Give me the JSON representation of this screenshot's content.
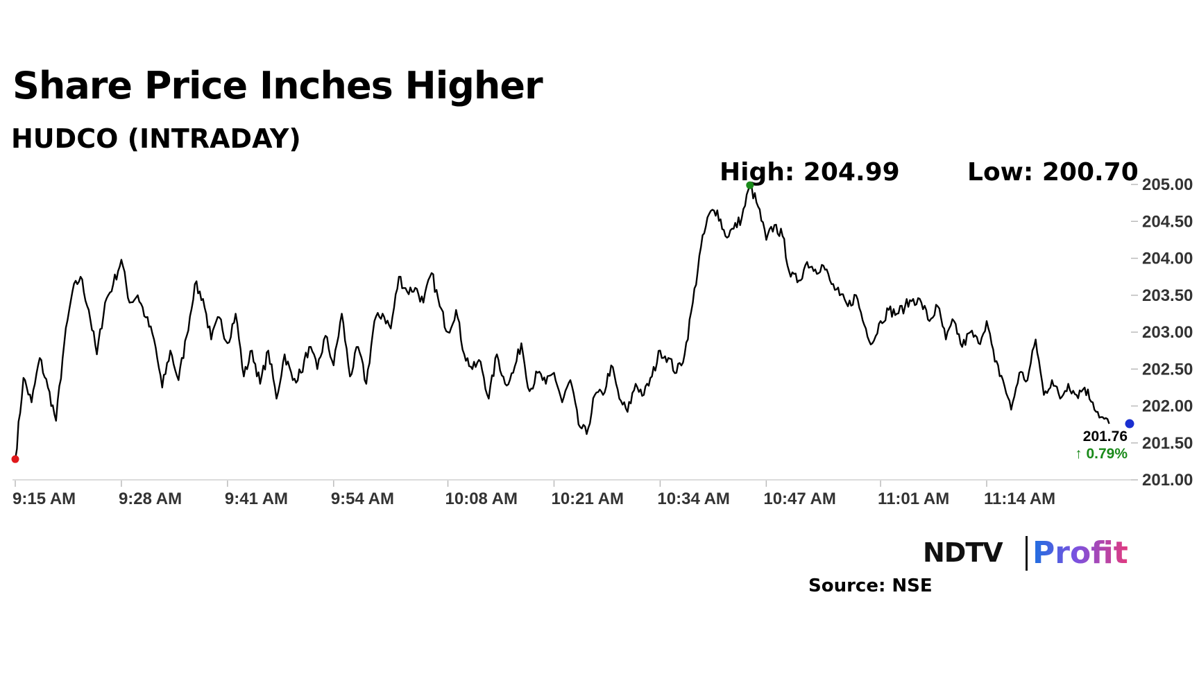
{
  "header": {
    "title": "Share Price Inches Higher",
    "subtitle": "HUDCO (INTRADAY)"
  },
  "stats": {
    "high_label": "High: 204.99",
    "low_label": "Low: 200.70"
  },
  "last": {
    "price": "201.76",
    "change": "↑ 0.79%"
  },
  "brand": {
    "ndtv": "NDTV",
    "profit": "Profit"
  },
  "footer": {
    "source": "Source: NSE"
  },
  "colors": {
    "line": "#000000",
    "open_marker": "#e0181b",
    "high_marker": "#1a8a1a",
    "last_marker": "#1a2fd0",
    "up": "#1a8a1a",
    "axis": "#333333"
  },
  "chart_data": {
    "type": "line",
    "x_ticks": [
      "9:15 AM",
      "9:28 AM",
      "9:41 AM",
      "9:54 AM",
      "10:08 AM",
      "10:21 AM",
      "10:34 AM",
      "10:47 AM",
      "11:01 AM",
      "11:14 AM"
    ],
    "y_ticks": [
      "201.00",
      "201.50",
      "202.00",
      "202.50",
      "203.00",
      "203.50",
      "204.00",
      "204.50",
      "205.00"
    ],
    "ylim": [
      201.0,
      205.0
    ],
    "grid": false,
    "series": [
      {
        "points": [
          [
            "9:15",
            201.28
          ],
          [
            "9:16",
            202.38
          ],
          [
            "9:17",
            202.05
          ],
          [
            "9:18",
            202.65
          ],
          [
            "9:19",
            202.25
          ],
          [
            "9:20",
            201.8
          ],
          [
            "9:21",
            202.85
          ],
          [
            "9:22",
            203.55
          ],
          [
            "9:23",
            203.75
          ],
          [
            "9:24",
            203.3
          ],
          [
            "9:25",
            202.7
          ],
          [
            "9:26",
            203.4
          ],
          [
            "9:27",
            203.65
          ],
          [
            "9:28",
            203.98
          ],
          [
            "9:29",
            203.4
          ],
          [
            "9:30",
            203.5
          ],
          [
            "9:31",
            203.2
          ],
          [
            "9:32",
            202.9
          ],
          [
            "9:33",
            202.25
          ],
          [
            "9:34",
            202.75
          ],
          [
            "9:35",
            202.35
          ],
          [
            "9:36",
            202.95
          ],
          [
            "9:37",
            203.65
          ],
          [
            "9:38",
            203.45
          ],
          [
            "9:39",
            202.9
          ],
          [
            "9:40",
            203.2
          ],
          [
            "9:41",
            202.85
          ],
          [
            "9:42",
            203.25
          ],
          [
            "9:43",
            202.4
          ],
          [
            "9:44",
            202.75
          ],
          [
            "9:45",
            202.3
          ],
          [
            "9:46",
            202.75
          ],
          [
            "9:47",
            202.1
          ],
          [
            "9:48",
            202.7
          ],
          [
            "9:49",
            202.35
          ],
          [
            "9:50",
            202.45
          ],
          [
            "9:51",
            202.8
          ],
          [
            "9:52",
            202.5
          ],
          [
            "9:53",
            202.95
          ],
          [
            "9:54",
            202.55
          ],
          [
            "9:55",
            203.25
          ],
          [
            "9:56",
            202.4
          ],
          [
            "9:57",
            202.8
          ],
          [
            "9:58",
            202.3
          ],
          [
            "9:59",
            203.15
          ],
          [
            "10:00",
            203.25
          ],
          [
            "10:01",
            203.05
          ],
          [
            "10:02",
            203.75
          ],
          [
            "10:03",
            203.55
          ],
          [
            "10:04",
            203.6
          ],
          [
            "10:05",
            203.4
          ],
          [
            "10:06",
            203.8
          ],
          [
            "10:07",
            203.35
          ],
          [
            "10:08",
            203.0
          ],
          [
            "10:09",
            203.3
          ],
          [
            "10:10",
            202.7
          ],
          [
            "10:11",
            202.5
          ],
          [
            "10:12",
            202.6
          ],
          [
            "10:13",
            202.1
          ],
          [
            "10:14",
            202.7
          ],
          [
            "10:15",
            202.3
          ],
          [
            "10:16",
            202.45
          ],
          [
            "10:17",
            202.85
          ],
          [
            "10:18",
            202.2
          ],
          [
            "10:19",
            202.45
          ],
          [
            "10:20",
            202.3
          ],
          [
            "10:21",
            202.45
          ],
          [
            "10:22",
            202.05
          ],
          [
            "10:23",
            202.35
          ],
          [
            "10:24",
            201.75
          ],
          [
            "10:25",
            201.62
          ],
          [
            "10:26",
            202.15
          ],
          [
            "10:27",
            202.15
          ],
          [
            "10:28",
            202.55
          ],
          [
            "10:29",
            202.1
          ],
          [
            "10:30",
            201.92
          ],
          [
            "10:31",
            202.3
          ],
          [
            "10:32",
            202.15
          ],
          [
            "10:33",
            202.4
          ],
          [
            "10:34",
            202.75
          ],
          [
            "10:35",
            202.65
          ],
          [
            "10:36",
            202.45
          ],
          [
            "10:37",
            202.7
          ],
          [
            "10:38",
            203.4
          ],
          [
            "10:39",
            204.15
          ],
          [
            "10:40",
            204.6
          ],
          [
            "10:41",
            204.65
          ],
          [
            "10:42",
            204.3
          ],
          [
            "10:43",
            204.4
          ],
          [
            "10:44",
            204.55
          ],
          [
            "10:45",
            204.99
          ],
          [
            "10:46",
            204.7
          ],
          [
            "10:47",
            204.25
          ],
          [
            "10:48",
            204.45
          ],
          [
            "10:49",
            204.3
          ],
          [
            "10:50",
            203.75
          ],
          [
            "10:51",
            203.7
          ],
          [
            "10:52",
            203.95
          ],
          [
            "10:53",
            203.85
          ],
          [
            "10:54",
            203.9
          ],
          [
            "10:55",
            203.65
          ],
          [
            "10:56",
            203.5
          ],
          [
            "10:57",
            203.35
          ],
          [
            "10:58",
            203.5
          ],
          [
            "10:59",
            203.1
          ],
          [
            "11:00",
            202.85
          ],
          [
            "11:01",
            203.15
          ],
          [
            "11:02",
            203.3
          ],
          [
            "11:03",
            203.25
          ],
          [
            "11:04",
            203.35
          ],
          [
            "11:05",
            203.45
          ],
          [
            "11:06",
            203.4
          ],
          [
            "11:07",
            203.15
          ],
          [
            "11:08",
            203.35
          ],
          [
            "11:09",
            202.9
          ],
          [
            "11:10",
            203.15
          ],
          [
            "11:11",
            202.8
          ],
          [
            "11:12",
            203.0
          ],
          [
            "11:13",
            202.85
          ],
          [
            "11:14",
            203.15
          ],
          [
            "11:15",
            202.6
          ],
          [
            "11:16",
            202.35
          ],
          [
            "11:17",
            201.95
          ],
          [
            "11:18",
            202.45
          ],
          [
            "11:19",
            202.35
          ],
          [
            "11:20",
            202.9
          ],
          [
            "11:21",
            202.15
          ],
          [
            "11:22",
            202.35
          ],
          [
            "11:23",
            202.1
          ],
          [
            "11:24",
            202.3
          ],
          [
            "11:25",
            202.15
          ],
          [
            "11:26",
            202.25
          ],
          [
            "11:27",
            202.05
          ],
          [
            "11:28",
            201.85
          ],
          [
            "11:29",
            201.76
          ]
        ]
      }
    ]
  }
}
